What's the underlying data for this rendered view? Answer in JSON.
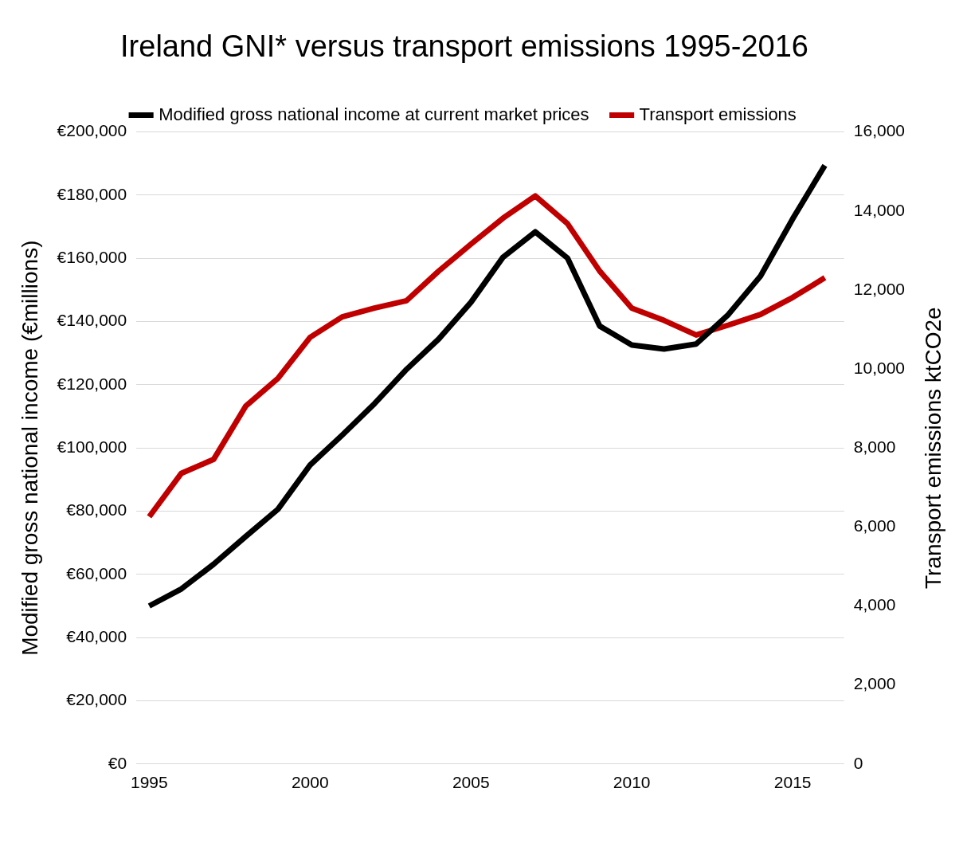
{
  "chart_data": {
    "type": "line",
    "title": "Ireland GNI* versus transport emissions 1995-2016",
    "ylabel": "Modified gross national income (€millions)",
    "y2label": "Transport emissions ktCO2e",
    "x": [
      1995,
      1996,
      1997,
      1998,
      1999,
      2000,
      2001,
      2002,
      2003,
      2004,
      2005,
      2006,
      2007,
      2008,
      2009,
      2010,
      2011,
      2012,
      2013,
      2014,
      2015,
      2016
    ],
    "xlim": [
      1994.6,
      2016.6
    ],
    "xticks": [
      1995,
      2000,
      2005,
      2010,
      2015
    ],
    "ylim": [
      0,
      200000
    ],
    "yticks": [
      {
        "value": 0,
        "label": "€0"
      },
      {
        "value": 20000,
        "label": "€20,000"
      },
      {
        "value": 40000,
        "label": "€40,000"
      },
      {
        "value": 60000,
        "label": "€60,000"
      },
      {
        "value": 80000,
        "label": "€80,000"
      },
      {
        "value": 100000,
        "label": "€100,000"
      },
      {
        "value": 120000,
        "label": "€120,000"
      },
      {
        "value": 140000,
        "label": "€140,000"
      },
      {
        "value": 160000,
        "label": "€160,000"
      },
      {
        "value": 180000,
        "label": "€180,000"
      },
      {
        "value": 200000,
        "label": "€200,000"
      }
    ],
    "y2lim": [
      0,
      16000
    ],
    "y2ticks": [
      0,
      {
        "value": 2000,
        "label": "2,000"
      },
      {
        "value": 4000,
        "label": "4,000"
      },
      {
        "value": 6000,
        "label": "6,000"
      },
      {
        "value": 8000,
        "label": "8,000"
      },
      {
        "value": 10000,
        "label": "10,000"
      },
      {
        "value": 12000,
        "label": "12,000"
      },
      {
        "value": 14000,
        "label": "14,000"
      },
      {
        "value": 16000,
        "label": "16,000"
      }
    ],
    "series": [
      {
        "name": "Modified gross national income at current market prices",
        "color": "#000000",
        "values": [
          50000,
          55400,
          63200,
          72000,
          80600,
          94600,
          104100,
          114000,
          124900,
          134500,
          146100,
          160400,
          168400,
          160100,
          138600,
          132600,
          131300,
          132900,
          142200,
          154400,
          172500,
          189400
        ]
      },
      {
        "name": "Transport emissions",
        "color": "#c00000",
        "axis": "y2",
        "values": [
          6260,
          7360,
          7710,
          9060,
          9760,
          10800,
          11320,
          11540,
          11730,
          12480,
          13160,
          13820,
          14380,
          13680,
          12480,
          11540,
          11230,
          10860,
          11110,
          11380,
          11810,
          12310
        ]
      }
    ],
    "grid": "y",
    "legend": "top"
  }
}
